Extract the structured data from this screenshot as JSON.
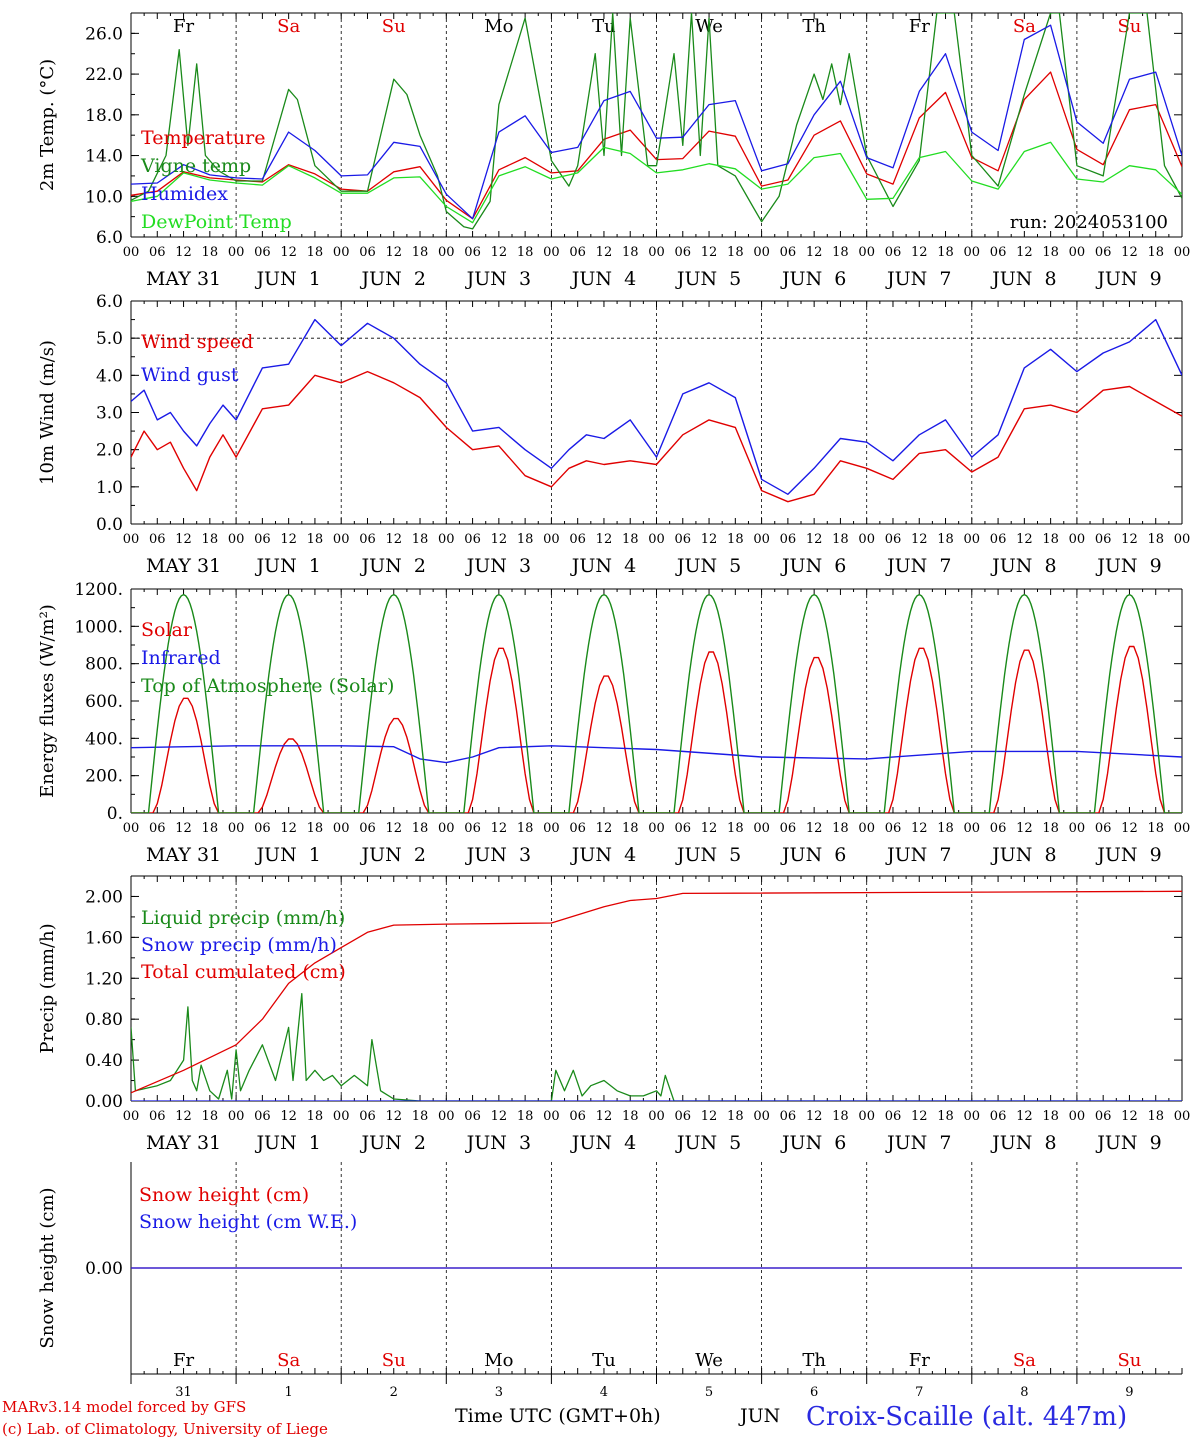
{
  "meta": {
    "run_label": "run: 2024053100"
  },
  "colors": {
    "red": "#e00000",
    "green": "#1a8a1a",
    "blue": "#1a1ae6",
    "lightgreen": "#22dd22",
    "purple": "#7a2a8a"
  },
  "footer": {
    "credit_line1": "MARv3.14 model forced by GFS",
    "credit_line2": "(c) Lab. of Climatology, University of Liege",
    "x_title": "Time UTC (GMT+0h)",
    "month": "JUN",
    "station": "Croix-Scaille (alt. 447m)"
  },
  "chart_data": [
    {
      "type": "line",
      "ylabel": "2m Temp. (°C)",
      "ylim": [
        6,
        28
      ],
      "yticks": [
        "6.0",
        "10.0",
        "14.0",
        "18.0",
        "22.0",
        "26.0"
      ],
      "x_hour_labels": [
        "00",
        "06",
        "12",
        "18"
      ],
      "day_labels": [
        "MAY 31",
        "JUN  1",
        "JUN  2",
        "JUN  3",
        "JUN  4",
        "JUN  5",
        "JUN  6",
        "JUN  7",
        "JUN  8",
        "JUN  9"
      ],
      "weekday_labels": [
        "Fr",
        "Sa",
        "Su",
        "Mo",
        "Tu",
        "We",
        "Th",
        "Fr",
        "Sa",
        "Su"
      ],
      "weekday_colors": [
        "black",
        "red",
        "red",
        "black",
        "black",
        "black",
        "black",
        "black",
        "red",
        "red"
      ],
      "annotation": "run: 2024053100",
      "series": [
        {
          "name": "Temperature",
          "color": "#e00000",
          "x": [
            0,
            6,
            12,
            18,
            24,
            30,
            36,
            42,
            48,
            54,
            60,
            66,
            72,
            78,
            84,
            90,
            96,
            102,
            108,
            114,
            120,
            126,
            132,
            138,
            144,
            150,
            156,
            162,
            168,
            174,
            180,
            186,
            192,
            198,
            204,
            210,
            216,
            222,
            228,
            234,
            240
          ],
          "values": [
            10.1,
            10.5,
            12.4,
            11.8,
            11.6,
            11.4,
            13.1,
            12.2,
            10.7,
            10.5,
            12.4,
            12.9,
            9.6,
            7.8,
            12.6,
            13.8,
            12.3,
            12.5,
            15.6,
            16.5,
            13.6,
            13.7,
            16.4,
            15.9,
            11.0,
            11.6,
            16.0,
            17.4,
            12.2,
            11.2,
            17.7,
            20.2,
            13.8,
            12.5,
            19.5,
            22.2,
            14.6,
            13.1,
            18.5,
            19.0,
            12.9
          ]
        },
        {
          "name": "Vigne temp",
          "color": "#1a8a1a",
          "x": [
            0,
            4,
            8,
            11,
            13,
            15,
            17,
            20,
            24,
            30,
            36,
            38,
            42,
            48,
            54,
            60,
            63,
            66,
            70,
            72,
            76,
            78,
            82,
            84,
            90,
            96,
            100,
            102,
            106,
            108,
            110,
            112,
            114,
            118,
            120,
            124,
            126,
            128,
            130,
            132,
            134,
            136,
            138,
            142,
            144,
            148,
            152,
            156,
            158,
            160,
            162,
            164,
            168,
            174,
            180,
            184,
            186,
            188,
            192,
            198,
            204,
            210,
            212,
            216,
            222,
            228,
            232,
            236,
            240
          ],
          "values": [
            9.6,
            10.5,
            14.0,
            24.4,
            15.0,
            23.0,
            14.0,
            12.5,
            11.5,
            11.5,
            20.5,
            19.5,
            13.0,
            10.5,
            10.5,
            21.5,
            20.0,
            16.0,
            12.0,
            8.5,
            7.0,
            6.8,
            9.5,
            19.0,
            27.5,
            13.5,
            11.0,
            13.0,
            24.0,
            14.0,
            28.0,
            14.0,
            27.5,
            13.0,
            13.0,
            24.0,
            15.0,
            28.0,
            14.0,
            27.5,
            13.0,
            12.5,
            12.0,
            9.0,
            7.5,
            10.0,
            17.0,
            22.0,
            19.5,
            23.0,
            19.0,
            24.0,
            14.0,
            9.0,
            13.5,
            28.0,
            28.0,
            28.0,
            14.0,
            11.0,
            20.0,
            28.0,
            28.0,
            13.0,
            12.0,
            28.0,
            28.0,
            13.0,
            9.8
          ]
        },
        {
          "name": "Humidex",
          "color": "#1a1ae6",
          "x": [
            0,
            6,
            12,
            18,
            24,
            30,
            36,
            42,
            48,
            54,
            60,
            66,
            72,
            78,
            84,
            90,
            96,
            102,
            108,
            114,
            120,
            126,
            132,
            138,
            144,
            150,
            156,
            162,
            168,
            174,
            180,
            186,
            192,
            198,
            204,
            210,
            216,
            222,
            228,
            234,
            240
          ],
          "values": [
            11.2,
            11.3,
            13.1,
            12.1,
            11.8,
            11.7,
            16.3,
            14.5,
            12.0,
            12.1,
            15.3,
            14.9,
            10.2,
            7.8,
            16.3,
            17.9,
            14.3,
            14.8,
            19.4,
            20.3,
            15.7,
            15.8,
            19.0,
            19.4,
            12.5,
            13.2,
            18.0,
            21.3,
            13.8,
            12.8,
            20.3,
            24.0,
            16.3,
            14.5,
            25.4,
            26.8,
            17.3,
            15.2,
            21.5,
            22.2,
            14.0
          ]
        },
        {
          "name": "DewPoint Temp",
          "color": "#22dd22",
          "x": [
            0,
            6,
            12,
            18,
            24,
            30,
            36,
            42,
            48,
            54,
            60,
            66,
            72,
            78,
            84,
            90,
            96,
            102,
            108,
            114,
            120,
            126,
            132,
            138,
            144,
            150,
            156,
            162,
            168,
            174,
            180,
            186,
            192,
            198,
            204,
            210,
            216,
            222,
            228,
            234,
            240
          ],
          "values": [
            9.5,
            10.0,
            12.3,
            11.6,
            11.3,
            11.1,
            13.0,
            11.8,
            10.3,
            10.3,
            11.8,
            11.9,
            9.0,
            7.4,
            12.0,
            12.9,
            11.7,
            12.3,
            14.8,
            14.2,
            12.3,
            12.6,
            13.2,
            12.7,
            10.7,
            11.2,
            13.8,
            14.2,
            9.7,
            9.8,
            13.8,
            14.4,
            11.5,
            10.7,
            14.4,
            15.3,
            11.7,
            11.4,
            13.0,
            12.6,
            10.2
          ]
        }
      ]
    },
    {
      "type": "line",
      "ylabel": "10m Wind (m/s)",
      "ylim": [
        0,
        6
      ],
      "yticks": [
        "0.0",
        "1.0",
        "2.0",
        "3.0",
        "4.0",
        "5.0",
        "6.0"
      ],
      "x_hour_labels": [
        "00",
        "06",
        "12",
        "18"
      ],
      "day_labels": [
        "MAY 31",
        "JUN  1",
        "JUN  2",
        "JUN  3",
        "JUN  4",
        "JUN  5",
        "JUN  6",
        "JUN  7",
        "JUN  8",
        "JUN  9"
      ],
      "dashed_level": 5.0,
      "series": [
        {
          "name": "Wind speed",
          "color": "#e00000",
          "x": [
            0,
            3,
            6,
            9,
            12,
            15,
            18,
            21,
            24,
            30,
            36,
            42,
            48,
            54,
            60,
            66,
            72,
            78,
            84,
            90,
            96,
            100,
            104,
            108,
            114,
            120,
            126,
            132,
            138,
            144,
            150,
            156,
            162,
            168,
            174,
            180,
            186,
            192,
            198,
            204,
            210,
            216,
            222,
            228,
            234,
            240
          ],
          "values": [
            1.8,
            2.5,
            2.0,
            2.2,
            1.5,
            0.9,
            1.8,
            2.4,
            1.8,
            3.1,
            3.2,
            4.0,
            3.8,
            4.1,
            3.8,
            3.4,
            2.6,
            2.0,
            2.1,
            1.3,
            1.0,
            1.5,
            1.7,
            1.6,
            1.7,
            1.6,
            2.4,
            2.8,
            2.6,
            0.9,
            0.6,
            0.8,
            1.7,
            1.5,
            1.2,
            1.9,
            2.0,
            1.4,
            1.8,
            3.1,
            3.2,
            3.0,
            3.6,
            3.7,
            3.3,
            2.9
          ]
        },
        {
          "name": "Wind gust",
          "color": "#1a1ae6",
          "x": [
            0,
            3,
            6,
            9,
            12,
            15,
            18,
            21,
            24,
            30,
            36,
            42,
            48,
            54,
            60,
            66,
            72,
            78,
            84,
            90,
            96,
            100,
            104,
            108,
            114,
            120,
            126,
            132,
            138,
            144,
            150,
            156,
            162,
            168,
            174,
            180,
            186,
            192,
            198,
            204,
            210,
            216,
            222,
            228,
            234,
            240
          ],
          "values": [
            3.3,
            3.6,
            2.8,
            3.0,
            2.5,
            2.1,
            2.7,
            3.2,
            2.8,
            4.2,
            4.3,
            5.5,
            4.8,
            5.4,
            5.0,
            4.3,
            3.8,
            2.5,
            2.6,
            2.0,
            1.5,
            2.0,
            2.4,
            2.3,
            2.8,
            1.8,
            3.5,
            3.8,
            3.4,
            1.2,
            0.8,
            1.5,
            2.3,
            2.2,
            1.7,
            2.4,
            2.8,
            1.8,
            2.4,
            4.2,
            4.7,
            4.1,
            4.6,
            4.9,
            5.5,
            4.0
          ]
        }
      ]
    },
    {
      "type": "line",
      "ylabel": "Energy fluxes (W/m²)",
      "ylim": [
        0,
        1200
      ],
      "yticks": [
        "0.",
        "200.",
        "400.",
        "600.",
        "800.",
        "1000.",
        "1200."
      ],
      "x_hour_labels": [
        "00",
        "06",
        "12",
        "18"
      ],
      "day_labels": [
        "MAY 31",
        "JUN  1",
        "JUN  2",
        "JUN  3",
        "JUN  4",
        "JUN  5",
        "JUN  6",
        "JUN  7",
        "JUN  8",
        "JUN  9"
      ],
      "series": [
        {
          "name": "Solar",
          "color": "#e00000",
          "daily_peaks": [
            620,
            400,
            510,
            890,
            740,
            870,
            840,
            890,
            880,
            900
          ]
        },
        {
          "name": "Infrared",
          "color": "#1a1ae6",
          "x": [
            0,
            24,
            48,
            60,
            66,
            72,
            78,
            84,
            96,
            120,
            144,
            168,
            192,
            216,
            240
          ],
          "values": [
            350,
            360,
            360,
            355,
            290,
            270,
            300,
            350,
            360,
            340,
            300,
            290,
            330,
            330,
            300
          ]
        },
        {
          "name": "Top of Atmosphere (Solar)",
          "color": "#1a8a1a",
          "daily_peak": 1170
        }
      ]
    },
    {
      "type": "line",
      "ylabel": "Precip (mm/h)",
      "ylim": [
        0,
        2.2
      ],
      "yticks": [
        "0.00",
        "0.40",
        "0.80",
        "1.20",
        "1.60",
        "2.00"
      ],
      "x_hour_labels": [
        "00",
        "06",
        "12",
        "18"
      ],
      "day_labels": [
        "MAY 31",
        "JUN  1",
        "JUN  2",
        "JUN  3",
        "JUN  4",
        "JUN  5",
        "JUN  6",
        "JUN  7",
        "JUN  8",
        "JUN  9"
      ],
      "series": [
        {
          "name": "Liquid precip (mm/h)",
          "color": "#1a8a1a",
          "x": [
            0,
            1,
            3,
            6,
            9,
            12,
            13,
            14,
            15,
            16,
            18,
            20,
            22,
            23,
            24,
            25,
            27,
            30,
            33,
            36,
            37,
            39,
            40,
            42,
            44,
            46,
            48,
            51,
            54,
            55,
            57,
            60,
            66,
            72,
            96,
            97,
            99,
            101,
            103,
            105,
            108,
            111,
            114,
            117,
            120,
            121,
            122,
            124,
            240
          ],
          "values": [
            0.72,
            0.1,
            0.12,
            0.15,
            0.2,
            0.4,
            0.92,
            0.2,
            0.1,
            0.35,
            0.1,
            0.02,
            0.3,
            0.02,
            0.5,
            0.1,
            0.3,
            0.55,
            0.2,
            0.72,
            0.2,
            1.05,
            0.2,
            0.3,
            0.2,
            0.25,
            0.15,
            0.25,
            0.15,
            0.6,
            0.1,
            0.02,
            0,
            0,
            0,
            0.3,
            0.1,
            0.3,
            0.05,
            0.15,
            0.2,
            0.1,
            0.05,
            0.05,
            0.1,
            0.05,
            0.25,
            0,
            0
          ]
        },
        {
          "name": "Snow precip (mm/h)",
          "color": "#1a1ae6",
          "x": [
            0,
            240
          ],
          "values": [
            0,
            0
          ]
        },
        {
          "name": "Total cumulated (cm)",
          "color": "#e00000",
          "x": [
            0,
            12,
            24,
            30,
            36,
            42,
            48,
            54,
            60,
            72,
            96,
            102,
            108,
            114,
            120,
            126,
            240
          ],
          "values": [
            0.08,
            0.3,
            0.55,
            0.8,
            1.15,
            1.35,
            1.5,
            1.65,
            1.72,
            1.73,
            1.74,
            1.82,
            1.9,
            1.96,
            1.98,
            2.03,
            2.05
          ]
        }
      ]
    },
    {
      "type": "line",
      "ylabel": "Snow height (cm)",
      "yticks": [
        "0.00"
      ],
      "weekday_labels": [
        "Fr",
        "Sa",
        "Su",
        "Mo",
        "Tu",
        "We",
        "Th",
        "Fr",
        "Sa",
        "Su"
      ],
      "weekday_colors": [
        "black",
        "red",
        "red",
        "black",
        "black",
        "black",
        "black",
        "black",
        "red",
        "red"
      ],
      "day_numbers": [
        "31",
        "1",
        "2",
        "3",
        "4",
        "5",
        "6",
        "7",
        "8",
        "9"
      ],
      "series": [
        {
          "name": "Snow height (cm)",
          "color": "#e00000",
          "x": [
            0,
            240
          ],
          "values": [
            0,
            0
          ]
        },
        {
          "name": "Snow height (cm W.E.)",
          "color": "#1a1ae6",
          "x": [
            0,
            240
          ],
          "values": [
            0,
            0
          ]
        }
      ]
    }
  ]
}
